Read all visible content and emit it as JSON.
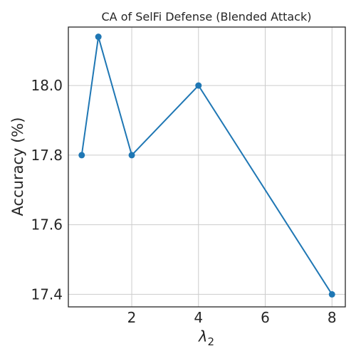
{
  "chart_data": {
    "type": "line",
    "title": "CA of SelFi Defense (Blended Attack)",
    "xlabel": "λ",
    "xlabel_subscript": "2",
    "ylabel": "Accuracy (%)",
    "xlim": [
      0.1,
      8.4
    ],
    "ylim": [
      17.364,
      18.168
    ],
    "xticks": [
      2,
      4,
      6,
      8
    ],
    "yticks": [
      17.4,
      17.6,
      17.8,
      18.0
    ],
    "ytick_labels": [
      "17.4",
      "17.6",
      "17.8",
      "18.0"
    ],
    "grid": true,
    "series": [
      {
        "color": "#1f77b4",
        "x": [
          0.5,
          1,
          2,
          4,
          8
        ],
        "y": [
          17.8,
          18.14,
          17.8,
          18.0,
          17.4
        ]
      }
    ]
  }
}
